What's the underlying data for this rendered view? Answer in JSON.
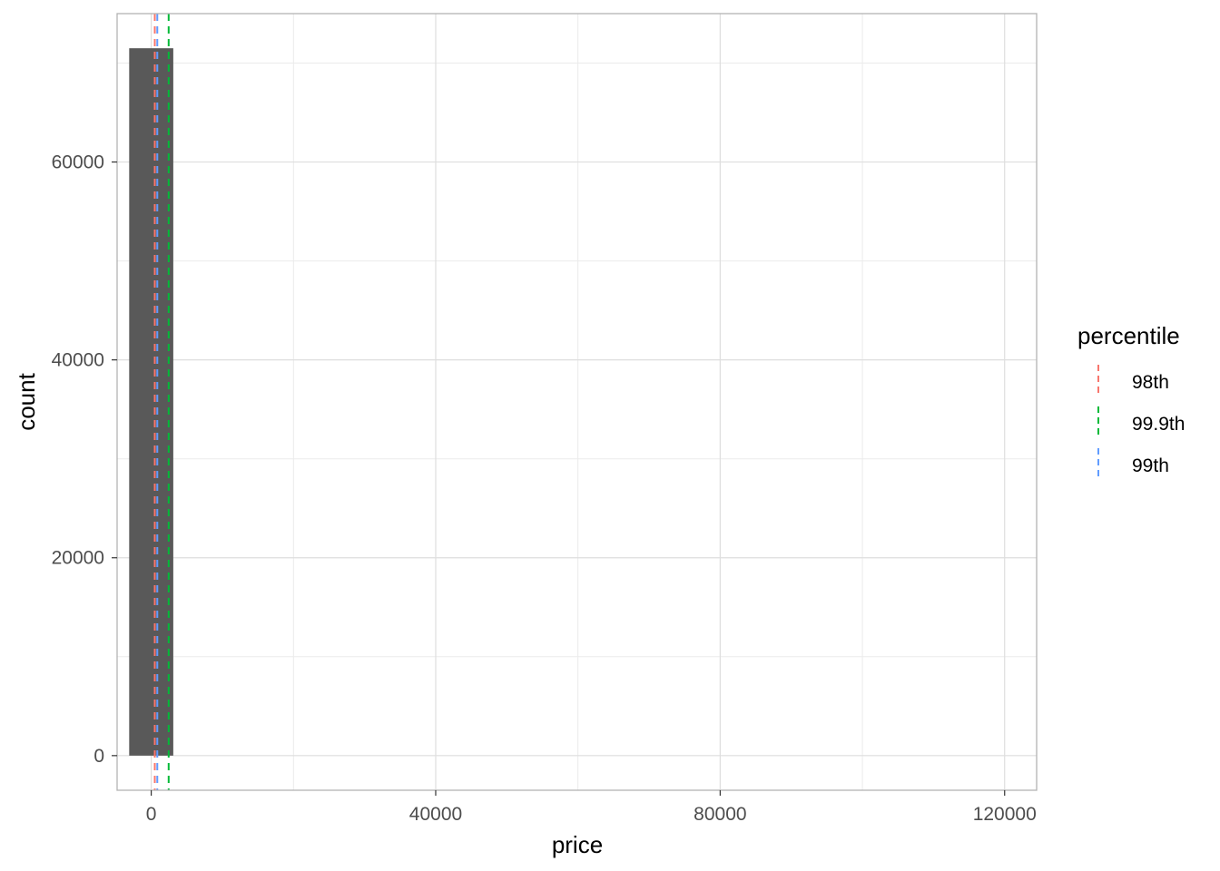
{
  "chart_data": {
    "type": "bar",
    "subtype": "histogram",
    "title": "",
    "xlabel": "price",
    "ylabel": "count",
    "xlim": [
      -4800,
      124500
    ],
    "ylim": [
      -3500,
      75000
    ],
    "x_ticks": [
      0,
      40000,
      80000,
      120000
    ],
    "x_tick_labels": [
      "0",
      "40000",
      "80000",
      "120000"
    ],
    "y_ticks": [
      0,
      20000,
      40000,
      60000
    ],
    "y_tick_labels": [
      "0",
      "20000",
      "40000",
      "60000"
    ],
    "grid": true,
    "bins": [
      {
        "x_start": -3100,
        "x_end": 3100,
        "count": 71500,
        "color": "#595959"
      }
    ],
    "reference_lines": {
      "legend_title": "percentile",
      "legend_position": "right",
      "linetype": "dashed",
      "series": [
        {
          "name": "98th",
          "value": 500,
          "color": "#F8766D"
        },
        {
          "name": "99.9th",
          "value": 2450,
          "color": "#00BA38"
        },
        {
          "name": "99th",
          "value": 850,
          "color": "#619CFF"
        }
      ]
    }
  }
}
